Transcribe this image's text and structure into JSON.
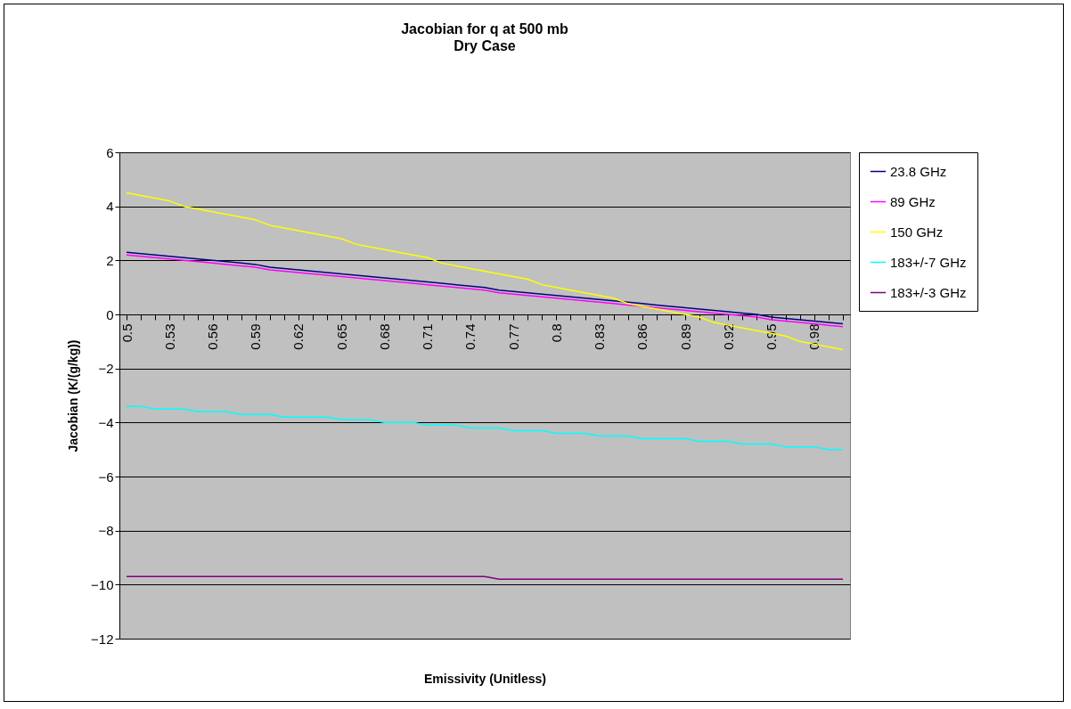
{
  "chart_data": {
    "type": "line",
    "title": "Jacobian for q at 500 mb",
    "subtitle": "Dry Case",
    "xlabel": "Emissivity (Unitless)",
    "ylabel": "Jacobian (K/(g/kg))",
    "categories": [
      "0.5",
      null,
      null,
      "0.53",
      null,
      null,
      "0.56",
      null,
      null,
      "0.59",
      null,
      null,
      "0.62",
      null,
      null,
      "0.65",
      null,
      null,
      "0.68",
      null,
      null,
      "0.71",
      null,
      null,
      "0.74",
      null,
      null,
      "0.77",
      null,
      null,
      "0.8",
      null,
      null,
      "0.83",
      null,
      null,
      "0.86",
      null,
      null,
      "0.89",
      null,
      null,
      "0.92",
      null,
      null,
      "0.95",
      null,
      null,
      "0.98",
      null,
      null
    ],
    "ylim": [
      -12,
      6
    ],
    "yticks": [
      -12,
      -10,
      -8,
      -6,
      -4,
      -2,
      0,
      2,
      4,
      6
    ],
    "grid": "y",
    "legend": "right",
    "marker": "none",
    "line_style": "solid",
    "series": [
      {
        "name": "23.8 GHz",
        "color": "#000080",
        "values": [
          2.3,
          2.25,
          2.2,
          2.15,
          2.1,
          2.05,
          2.0,
          1.95,
          1.9,
          1.85,
          1.75,
          1.7,
          1.65,
          1.6,
          1.55,
          1.5,
          1.45,
          1.4,
          1.35,
          1.3,
          1.25,
          1.2,
          1.15,
          1.1,
          1.05,
          1.0,
          0.9,
          0.85,
          0.8,
          0.75,
          0.7,
          0.65,
          0.6,
          0.55,
          0.5,
          0.45,
          0.4,
          0.35,
          0.3,
          0.25,
          0.2,
          0.15,
          0.1,
          0.05,
          0.0,
          -0.1,
          -0.15,
          -0.2,
          -0.25,
          -0.3,
          -0.35
        ]
      },
      {
        "name": "89 GHz",
        "color": "#ff00ff",
        "values": [
          2.2,
          2.15,
          2.1,
          2.05,
          2.0,
          1.95,
          1.9,
          1.85,
          1.8,
          1.75,
          1.65,
          1.6,
          1.55,
          1.5,
          1.45,
          1.4,
          1.35,
          1.3,
          1.25,
          1.2,
          1.15,
          1.1,
          1.05,
          1.0,
          0.95,
          0.9,
          0.8,
          0.75,
          0.7,
          0.65,
          0.6,
          0.55,
          0.5,
          0.45,
          0.4,
          0.35,
          0.3,
          0.25,
          0.2,
          0.15,
          0.1,
          0.05,
          0.0,
          -0.05,
          -0.1,
          -0.2,
          -0.25,
          -0.3,
          -0.35,
          -0.4,
          -0.45
        ]
      },
      {
        "name": "150 GHz",
        "color": "#ffff00",
        "values": [
          4.5,
          4.4,
          4.3,
          4.2,
          4.0,
          3.9,
          3.8,
          3.7,
          3.6,
          3.5,
          3.3,
          3.2,
          3.1,
          3.0,
          2.9,
          2.8,
          2.6,
          2.5,
          2.4,
          2.3,
          2.2,
          2.1,
          1.9,
          1.8,
          1.7,
          1.6,
          1.5,
          1.4,
          1.3,
          1.1,
          1.0,
          0.9,
          0.8,
          0.7,
          0.6,
          0.4,
          0.3,
          0.2,
          0.1,
          0.0,
          -0.1,
          -0.3,
          -0.4,
          -0.5,
          -0.6,
          -0.7,
          -0.8,
          -1.0,
          -1.1,
          -1.2,
          -1.3
        ]
      },
      {
        "name": "183+/-7 GHz",
        "color": "#00ffff",
        "values": [
          -3.4,
          -3.4,
          -3.5,
          -3.5,
          -3.5,
          -3.6,
          -3.6,
          -3.6,
          -3.7,
          -3.7,
          -3.7,
          -3.8,
          -3.8,
          -3.8,
          -3.8,
          -3.9,
          -3.9,
          -3.9,
          -4.0,
          -4.0,
          -4.0,
          -4.1,
          -4.1,
          -4.1,
          -4.2,
          -4.2,
          -4.2,
          -4.3,
          -4.3,
          -4.3,
          -4.4,
          -4.4,
          -4.4,
          -4.5,
          -4.5,
          -4.5,
          -4.6,
          -4.6,
          -4.6,
          -4.6,
          -4.7,
          -4.7,
          -4.7,
          -4.8,
          -4.8,
          -4.8,
          -4.9,
          -4.9,
          -4.9,
          -5.0,
          -5.0
        ]
      },
      {
        "name": "183+/-3 GHz",
        "color": "#800080",
        "values": [
          -9.7,
          -9.7,
          -9.7,
          -9.7,
          -9.7,
          -9.7,
          -9.7,
          -9.7,
          -9.7,
          -9.7,
          -9.7,
          -9.7,
          -9.7,
          -9.7,
          -9.7,
          -9.7,
          -9.7,
          -9.7,
          -9.7,
          -9.7,
          -9.7,
          -9.7,
          -9.7,
          -9.7,
          -9.7,
          -9.7,
          -9.8,
          -9.8,
          -9.8,
          -9.8,
          -9.8,
          -9.8,
          -9.8,
          -9.8,
          -9.8,
          -9.8,
          -9.8,
          -9.8,
          -9.8,
          -9.8,
          -9.8,
          -9.8,
          -9.8,
          -9.8,
          -9.8,
          -9.8,
          -9.8,
          -9.8,
          -9.8,
          -9.8,
          -9.8
        ]
      }
    ]
  }
}
